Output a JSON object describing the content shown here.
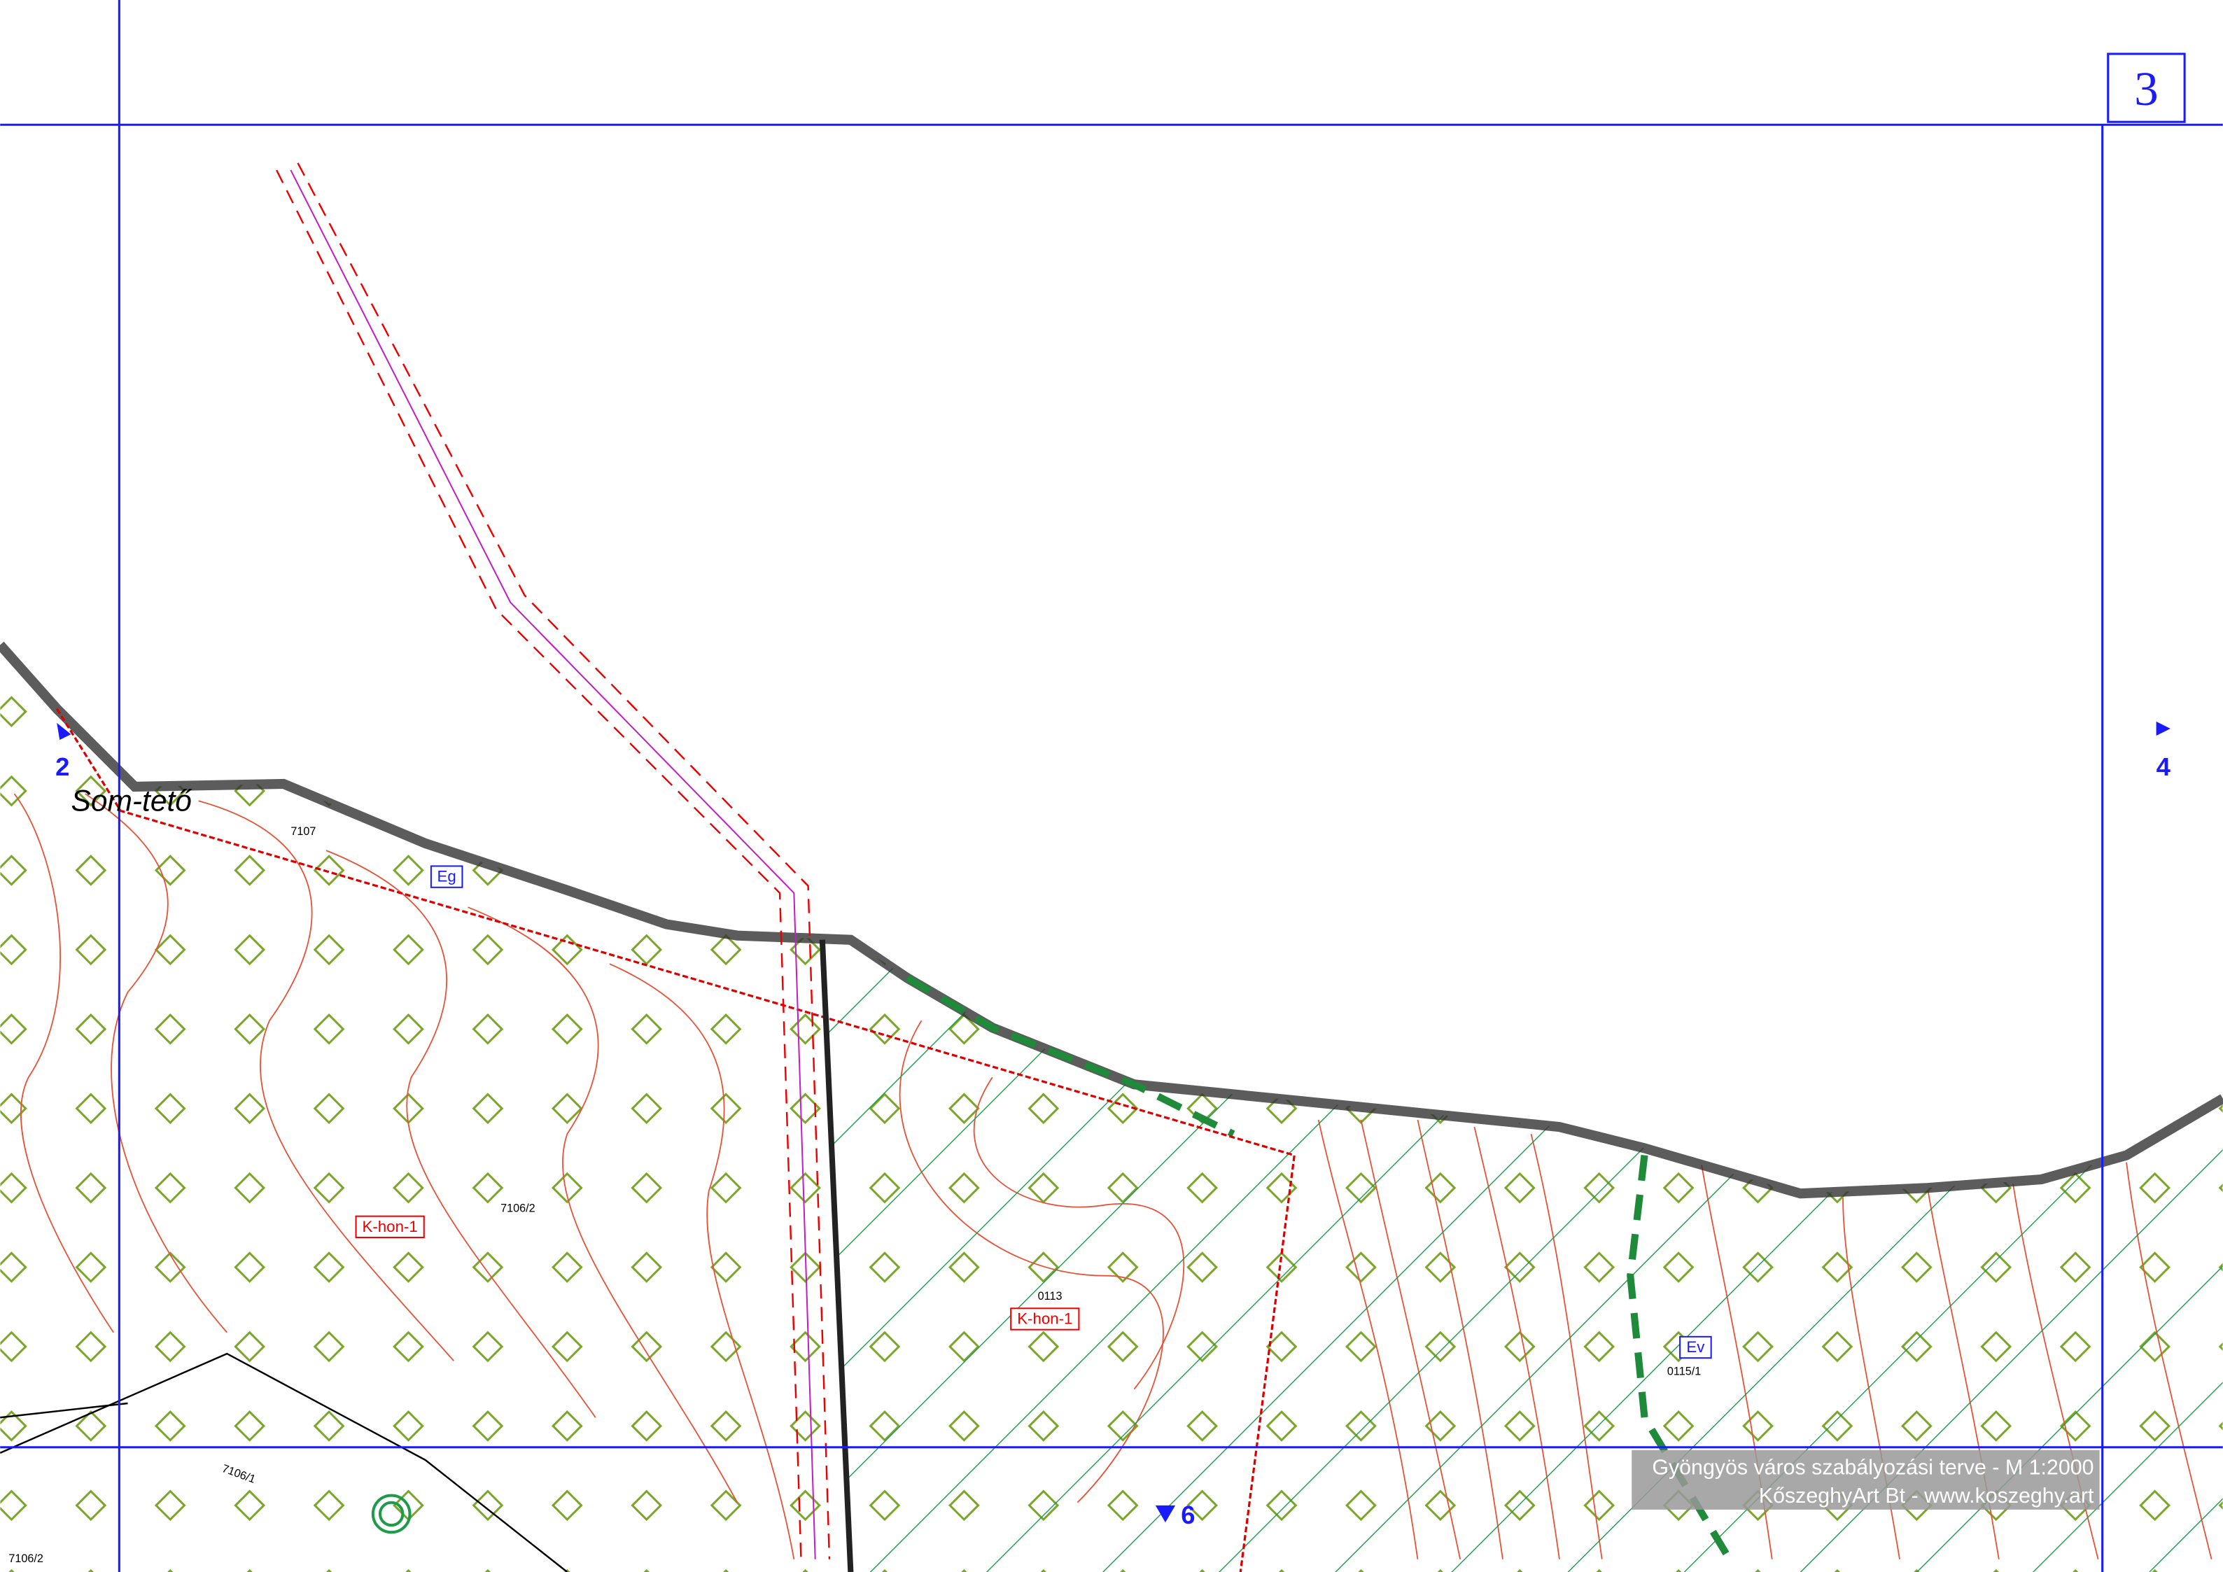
{
  "sheet": {
    "number": "3"
  },
  "neighbors": {
    "west": "2",
    "east": "4",
    "south": "6"
  },
  "place_name": "Som-tető",
  "parcels": [
    "7107",
    "7106/2",
    "0113",
    "0115/1",
    "7106/1",
    "7106/2"
  ],
  "zones": [
    "Eg",
    "K-hon-1",
    "K-hon-1",
    "Ev"
  ],
  "footer": {
    "line1": "Gyöngyös város szabályozási terve - M 1:2000",
    "line2": "KőszeghyArt Bt - www.koszeghy.art"
  }
}
